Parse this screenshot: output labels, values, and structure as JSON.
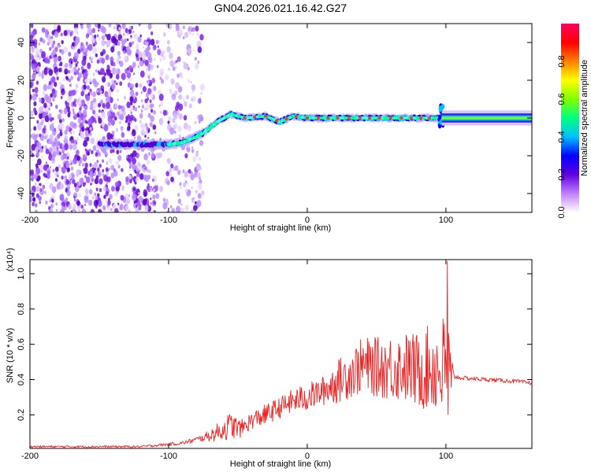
{
  "title": "GN04.2026.021.16.42.G27",
  "chart_data": [
    {
      "type": "heatmap",
      "name": "spectrogram",
      "xlabel": "Height of straight line (km)",
      "ylabel": "Frequency (Hz)",
      "xlim": [
        -200,
        162
      ],
      "ylim": [
        -50,
        50
      ],
      "x_ticks": [
        -200,
        -100,
        0,
        100
      ],
      "x_tick_labels": [
        "-200",
        "-100",
        "0",
        "100"
      ],
      "y_ticks": [
        -40,
        -20,
        0,
        20,
        40
      ],
      "y_tick_labels": [
        "-40",
        "-20",
        "0",
        "20",
        "40"
      ],
      "noise_region_x": [
        -200,
        -75
      ],
      "noise_dense_until_x": -110,
      "signal_trace": {
        "x": [
          -150,
          -120,
          -100,
          -90,
          -80,
          -75,
          -65,
          -55,
          -45,
          -30,
          -20,
          -10,
          0,
          20,
          40,
          60,
          80,
          90,
          95,
          100,
          162
        ],
        "freq": [
          -14,
          -14,
          -14,
          -13,
          -10,
          -8,
          -2,
          2,
          0,
          1,
          -2,
          1,
          0,
          0,
          0,
          0,
          0,
          0,
          0,
          0,
          0
        ]
      },
      "peak_points_x": [
        -45,
        -38,
        -30,
        -22,
        -15,
        -8,
        0,
        8,
        15,
        22,
        30,
        38,
        45,
        52,
        60,
        68,
        75,
        82,
        88
      ],
      "after_burst_band": {
        "x": [
          97,
          162
        ],
        "freq_half_width": 4
      },
      "colorbar": {
        "label": "Normalized spectral amplitude",
        "range": [
          0,
          1
        ],
        "ticks": [
          0.0,
          0.2,
          0.4,
          0.6,
          0.8
        ],
        "tick_labels": [
          "0.0",
          "0.2",
          "0.4",
          "0.6",
          "0.8"
        ],
        "colors": [
          "#ffffff",
          "#c080ff",
          "#6000e0",
          "#0000ff",
          "#00c0ff",
          "#00ff80",
          "#80ff00",
          "#ffff00",
          "#ff8000",
          "#ff0000",
          "#ff0060"
        ]
      }
    },
    {
      "type": "line",
      "name": "snr",
      "xlabel": "Height of straight line (km)",
      "ylabel": "SNR (10 * v/v)",
      "y_exponent_label": "(x10⁴)",
      "xlim": [
        -200,
        162
      ],
      "ylim": [
        0.01,
        1.08
      ],
      "x_ticks": [
        -200,
        -100,
        0,
        100
      ],
      "x_tick_labels": [
        "-200",
        "-100",
        "0",
        "100"
      ],
      "y_ticks": [
        0.2,
        0.4,
        0.6,
        0.8,
        1.0
      ],
      "y_tick_labels": [
        "0.2",
        "0.4",
        "0.6",
        "0.8",
        "1.0"
      ],
      "series": [
        {
          "name": "SNR",
          "color": "#ee2222",
          "envelope_x": [
            -200,
            -120,
            -90,
            -75,
            -65,
            -55,
            -48,
            -40,
            -30,
            -20,
            -10,
            0,
            10,
            20,
            30,
            40,
            50,
            60,
            70,
            80,
            90,
            95,
            100,
            102,
            104,
            106,
            110,
            130,
            150,
            162
          ],
          "envelope_mid": [
            0.02,
            0.02,
            0.04,
            0.07,
            0.1,
            0.14,
            0.12,
            0.17,
            0.2,
            0.24,
            0.28,
            0.3,
            0.33,
            0.38,
            0.43,
            0.48,
            0.47,
            0.47,
            0.47,
            0.45,
            0.47,
            0.46,
            0.45,
            0.4,
            0.3,
            0.42,
            0.41,
            0.4,
            0.39,
            0.38
          ],
          "envelope_amp": [
            0.006,
            0.006,
            0.01,
            0.02,
            0.05,
            0.08,
            0.05,
            0.05,
            0.06,
            0.06,
            0.07,
            0.08,
            0.08,
            0.12,
            0.14,
            0.16,
            0.17,
            0.19,
            0.2,
            0.22,
            0.25,
            0.28,
            0.35,
            0.38,
            0.3,
            0.02,
            0.012,
            0.012,
            0.012,
            0.012
          ],
          "peak": {
            "x": 101,
            "y": 1.07
          }
        }
      ]
    }
  ]
}
